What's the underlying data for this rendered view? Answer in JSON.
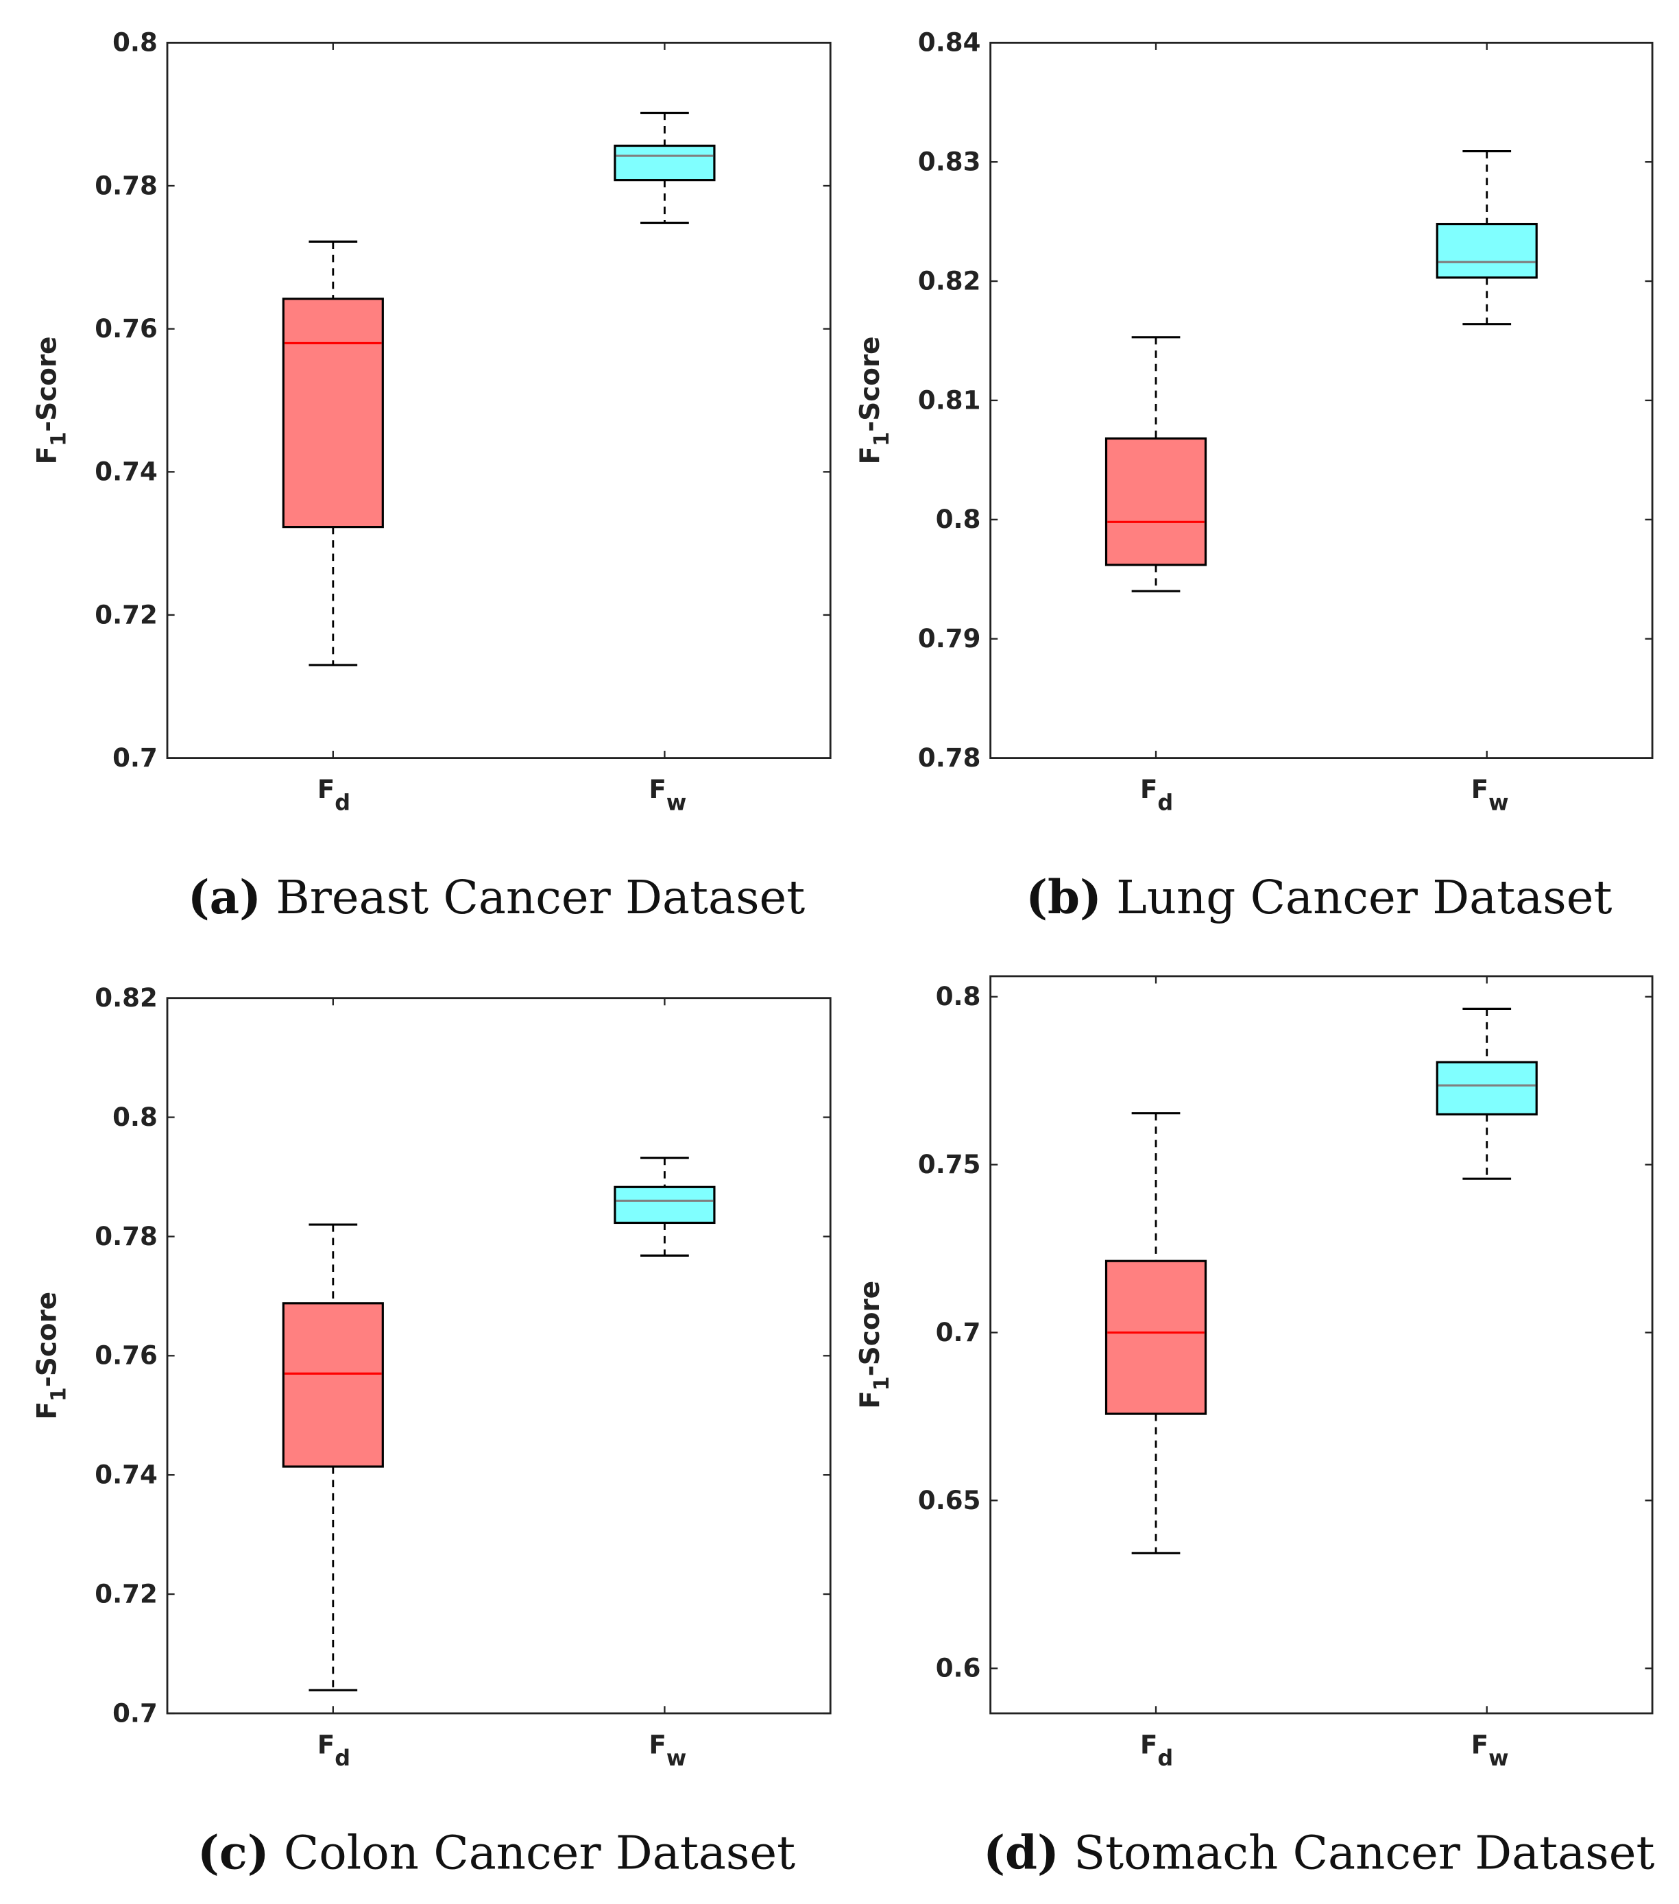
{
  "chart_data": [
    {
      "type": "box",
      "title": "Breast Cancer Dataset",
      "label": "(a)",
      "ylabel": "F1-Score",
      "ylim": [
        0.7,
        0.8
      ],
      "yticks": [
        0.7,
        0.72,
        0.74,
        0.76,
        0.78,
        0.8
      ],
      "yticklabels": [
        "0.7",
        "0.72",
        "0.74",
        "0.76",
        "0.78",
        "0.8"
      ],
      "categories": [
        {
          "main": "F",
          "sub": "d"
        },
        {
          "main": "F",
          "sub": "w"
        }
      ],
      "boxes": [
        {
          "min": 0.713,
          "q1": 0.7323,
          "median": 0.758,
          "q3": 0.7642,
          "max": 0.7722
        },
        {
          "min": 0.7748,
          "q1": 0.7808,
          "median": 0.7842,
          "q3": 0.7856,
          "max": 0.7902
        }
      ]
    },
    {
      "type": "box",
      "title": "Lung Cancer Dataset",
      "label": "(b)",
      "ylabel": "F1-Score",
      "ylim": [
        0.78,
        0.84
      ],
      "yticks": [
        0.78,
        0.79,
        0.8,
        0.81,
        0.82,
        0.83,
        0.84
      ],
      "yticklabels": [
        "0.78",
        "0.79",
        "0.8",
        "0.81",
        "0.82",
        "0.83",
        "0.84"
      ],
      "categories": [
        {
          "main": "F",
          "sub": "d"
        },
        {
          "main": "F",
          "sub": "w"
        }
      ],
      "boxes": [
        {
          "min": 0.794,
          "q1": 0.7962,
          "median": 0.7998,
          "q3": 0.8068,
          "max": 0.8153
        },
        {
          "min": 0.8164,
          "q1": 0.8203,
          "median": 0.8216,
          "q3": 0.8248,
          "max": 0.8309
        }
      ]
    },
    {
      "type": "box",
      "title": "Colon Cancer Dataset",
      "label": "(c)",
      "ylabel": "F1-Score",
      "ylim": [
        0.7,
        0.82
      ],
      "yticks": [
        0.7,
        0.72,
        0.74,
        0.76,
        0.78,
        0.8,
        0.82
      ],
      "yticklabels": [
        "0.7",
        "0.72",
        "0.74",
        "0.76",
        "0.78",
        "0.8",
        "0.82"
      ],
      "categories": [
        {
          "main": "F",
          "sub": "d"
        },
        {
          "main": "F",
          "sub": "w"
        }
      ],
      "boxes": [
        {
          "min": 0.7039,
          "q1": 0.7414,
          "median": 0.757,
          "q3": 0.7688,
          "max": 0.782
        },
        {
          "min": 0.7768,
          "q1": 0.7823,
          "median": 0.786,
          "q3": 0.7883,
          "max": 0.7932
        }
      ]
    },
    {
      "type": "box",
      "title": "Stomach Cancer Dataset",
      "label": "(d)",
      "ylabel": "F1-Score",
      "ylim": [
        0.5866,
        0.8061
      ],
      "yticks": [
        0.6,
        0.65,
        0.7,
        0.75,
        0.8
      ],
      "yticklabels": [
        "0.6",
        "0.65",
        "0.7",
        "0.75",
        "0.8"
      ],
      "categories": [
        {
          "main": "F",
          "sub": "d"
        },
        {
          "main": "F",
          "sub": "w"
        }
      ],
      "boxes": [
        {
          "min": 0.6343,
          "q1": 0.6758,
          "median": 0.7,
          "q3": 0.7213,
          "max": 0.7653
        },
        {
          "min": 0.7458,
          "q1": 0.765,
          "median": 0.7736,
          "q3": 0.7805,
          "max": 0.7964
        }
      ]
    }
  ],
  "colors": {
    "box_fd": "#ff8080",
    "median_fd": "#ff0000",
    "box_fw": "#80ffff",
    "median_fw": "#808080",
    "axis": "#222222"
  }
}
